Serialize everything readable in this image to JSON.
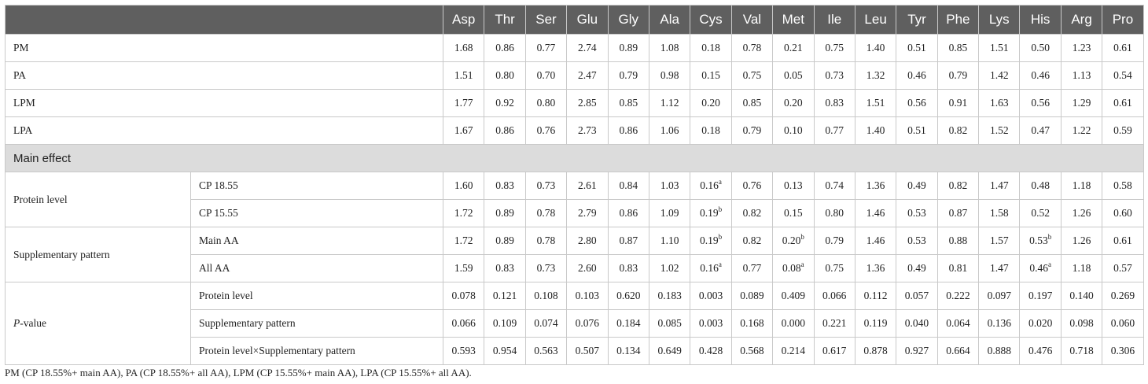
{
  "columns": [
    "Asp",
    "Thr",
    "Ser",
    "Glu",
    "Gly",
    "Ala",
    "Cys",
    "Val",
    "Met",
    "Ile",
    "Leu",
    "Tyr",
    "Phe",
    "Lys",
    "His",
    "Arg",
    "Pro"
  ],
  "treatments": [
    {
      "label": "PM",
      "values": [
        "1.68",
        "0.86",
        "0.77",
        "2.74",
        "0.89",
        "1.08",
        "0.18",
        "0.78",
        "0.21",
        "0.75",
        "1.40",
        "0.51",
        "0.85",
        "1.51",
        "0.50",
        "1.23",
        "0.61"
      ]
    },
    {
      "label": "PA",
      "values": [
        "1.51",
        "0.80",
        "0.70",
        "2.47",
        "0.79",
        "0.98",
        "0.15",
        "0.75",
        "0.05",
        "0.73",
        "1.32",
        "0.46",
        "0.79",
        "1.42",
        "0.46",
        "1.13",
        "0.54"
      ]
    },
    {
      "label": "LPM",
      "values": [
        "1.77",
        "0.92",
        "0.80",
        "2.85",
        "0.85",
        "1.12",
        "0.20",
        "0.85",
        "0.20",
        "0.83",
        "1.51",
        "0.56",
        "0.91",
        "1.63",
        "0.56",
        "1.29",
        "0.61"
      ]
    },
    {
      "label": "LPA",
      "values": [
        "1.67",
        "0.86",
        "0.76",
        "2.73",
        "0.86",
        "1.06",
        "0.18",
        "0.79",
        "0.10",
        "0.77",
        "1.40",
        "0.51",
        "0.82",
        "1.52",
        "0.47",
        "1.22",
        "0.59"
      ]
    }
  ],
  "section_title": "Main effect",
  "groups": [
    {
      "label": "Protein level",
      "label_prefix": "",
      "label_italic": "",
      "rows": [
        {
          "label": "CP 18.55",
          "values": [
            {
              "v": "1.60",
              "s": ""
            },
            {
              "v": "0.83",
              "s": ""
            },
            {
              "v": "0.73",
              "s": ""
            },
            {
              "v": "2.61",
              "s": ""
            },
            {
              "v": "0.84",
              "s": ""
            },
            {
              "v": "1.03",
              "s": ""
            },
            {
              "v": "0.16",
              "s": "a"
            },
            {
              "v": "0.76",
              "s": ""
            },
            {
              "v": "0.13",
              "s": ""
            },
            {
              "v": "0.74",
              "s": ""
            },
            {
              "v": "1.36",
              "s": ""
            },
            {
              "v": "0.49",
              "s": ""
            },
            {
              "v": "0.82",
              "s": ""
            },
            {
              "v": "1.47",
              "s": ""
            },
            {
              "v": "0.48",
              "s": ""
            },
            {
              "v": "1.18",
              "s": ""
            },
            {
              "v": "0.58",
              "s": ""
            }
          ]
        },
        {
          "label": "CP 15.55",
          "values": [
            {
              "v": "1.72",
              "s": ""
            },
            {
              "v": "0.89",
              "s": ""
            },
            {
              "v": "0.78",
              "s": ""
            },
            {
              "v": "2.79",
              "s": ""
            },
            {
              "v": "0.86",
              "s": ""
            },
            {
              "v": "1.09",
              "s": ""
            },
            {
              "v": "0.19",
              "s": "b"
            },
            {
              "v": "0.82",
              "s": ""
            },
            {
              "v": "0.15",
              "s": ""
            },
            {
              "v": "0.80",
              "s": ""
            },
            {
              "v": "1.46",
              "s": ""
            },
            {
              "v": "0.53",
              "s": ""
            },
            {
              "v": "0.87",
              "s": ""
            },
            {
              "v": "1.58",
              "s": ""
            },
            {
              "v": "0.52",
              "s": ""
            },
            {
              "v": "1.26",
              "s": ""
            },
            {
              "v": "0.60",
              "s": ""
            }
          ]
        }
      ]
    },
    {
      "label": "Supplementary pattern",
      "label_prefix": "",
      "label_italic": "",
      "rows": [
        {
          "label": "Main AA",
          "values": [
            {
              "v": "1.72",
              "s": ""
            },
            {
              "v": "0.89",
              "s": ""
            },
            {
              "v": "0.78",
              "s": ""
            },
            {
              "v": "2.80",
              "s": ""
            },
            {
              "v": "0.87",
              "s": ""
            },
            {
              "v": "1.10",
              "s": ""
            },
            {
              "v": "0.19",
              "s": "b"
            },
            {
              "v": "0.82",
              "s": ""
            },
            {
              "v": "0.20",
              "s": "b"
            },
            {
              "v": "0.79",
              "s": ""
            },
            {
              "v": "1.46",
              "s": ""
            },
            {
              "v": "0.53",
              "s": ""
            },
            {
              "v": "0.88",
              "s": ""
            },
            {
              "v": "1.57",
              "s": ""
            },
            {
              "v": "0.53",
              "s": "b"
            },
            {
              "v": "1.26",
              "s": ""
            },
            {
              "v": "0.61",
              "s": ""
            }
          ]
        },
        {
          "label": "All AA",
          "values": [
            {
              "v": "1.59",
              "s": ""
            },
            {
              "v": "0.83",
              "s": ""
            },
            {
              "v": "0.73",
              "s": ""
            },
            {
              "v": "2.60",
              "s": ""
            },
            {
              "v": "0.83",
              "s": ""
            },
            {
              "v": "1.02",
              "s": ""
            },
            {
              "v": "0.16",
              "s": "a"
            },
            {
              "v": "0.77",
              "s": ""
            },
            {
              "v": "0.08",
              "s": "a"
            },
            {
              "v": "0.75",
              "s": ""
            },
            {
              "v": "1.36",
              "s": ""
            },
            {
              "v": "0.49",
              "s": ""
            },
            {
              "v": "0.81",
              "s": ""
            },
            {
              "v": "1.47",
              "s": ""
            },
            {
              "v": "0.46",
              "s": "a"
            },
            {
              "v": "1.18",
              "s": ""
            },
            {
              "v": "0.57",
              "s": ""
            }
          ]
        }
      ]
    },
    {
      "label": "",
      "label_prefix": "",
      "label_italic": "P",
      "label_suffix": "-value",
      "rows": [
        {
          "label": "Protein level",
          "values": [
            {
              "v": "0.078",
              "s": ""
            },
            {
              "v": "0.121",
              "s": ""
            },
            {
              "v": "0.108",
              "s": ""
            },
            {
              "v": "0.103",
              "s": ""
            },
            {
              "v": "0.620",
              "s": ""
            },
            {
              "v": "0.183",
              "s": ""
            },
            {
              "v": "0.003",
              "s": ""
            },
            {
              "v": "0.089",
              "s": ""
            },
            {
              "v": "0.409",
              "s": ""
            },
            {
              "v": "0.066",
              "s": ""
            },
            {
              "v": "0.112",
              "s": ""
            },
            {
              "v": "0.057",
              "s": ""
            },
            {
              "v": "0.222",
              "s": ""
            },
            {
              "v": "0.097",
              "s": ""
            },
            {
              "v": "0.197",
              "s": ""
            },
            {
              "v": "0.140",
              "s": ""
            },
            {
              "v": "0.269",
              "s": ""
            }
          ]
        },
        {
          "label": "Supplementary pattern",
          "values": [
            {
              "v": "0.066",
              "s": ""
            },
            {
              "v": "0.109",
              "s": ""
            },
            {
              "v": "0.074",
              "s": ""
            },
            {
              "v": "0.076",
              "s": ""
            },
            {
              "v": "0.184",
              "s": ""
            },
            {
              "v": "0.085",
              "s": ""
            },
            {
              "v": "0.003",
              "s": ""
            },
            {
              "v": "0.168",
              "s": ""
            },
            {
              "v": "0.000",
              "s": ""
            },
            {
              "v": "0.221",
              "s": ""
            },
            {
              "v": "0.119",
              "s": ""
            },
            {
              "v": "0.040",
              "s": ""
            },
            {
              "v": "0.064",
              "s": ""
            },
            {
              "v": "0.136",
              "s": ""
            },
            {
              "v": "0.020",
              "s": ""
            },
            {
              "v": "0.098",
              "s": ""
            },
            {
              "v": "0.060",
              "s": ""
            }
          ]
        },
        {
          "label": "Protein level×Supplementary pattern",
          "values": [
            {
              "v": "0.593",
              "s": ""
            },
            {
              "v": "0.954",
              "s": ""
            },
            {
              "v": "0.563",
              "s": ""
            },
            {
              "v": "0.507",
              "s": ""
            },
            {
              "v": "0.134",
              "s": ""
            },
            {
              "v": "0.649",
              "s": ""
            },
            {
              "v": "0.428",
              "s": ""
            },
            {
              "v": "0.568",
              "s": ""
            },
            {
              "v": "0.214",
              "s": ""
            },
            {
              "v": "0.617",
              "s": ""
            },
            {
              "v": "0.878",
              "s": ""
            },
            {
              "v": "0.927",
              "s": ""
            },
            {
              "v": "0.664",
              "s": ""
            },
            {
              "v": "0.888",
              "s": ""
            },
            {
              "v": "0.476",
              "s": ""
            },
            {
              "v": "0.718",
              "s": ""
            },
            {
              "v": "0.306",
              "s": ""
            }
          ]
        }
      ]
    }
  ],
  "footnote": "PM (CP 18.55%+ main AA), PA (CP 18.55%+ all AA), LPM (CP 15.55%+ main AA), LPA (CP 15.55%+ all AA).",
  "colors": {
    "header_bg": "#5f5f5f",
    "section_bg": "#dcdcdc",
    "border": "#c9c9c9"
  }
}
